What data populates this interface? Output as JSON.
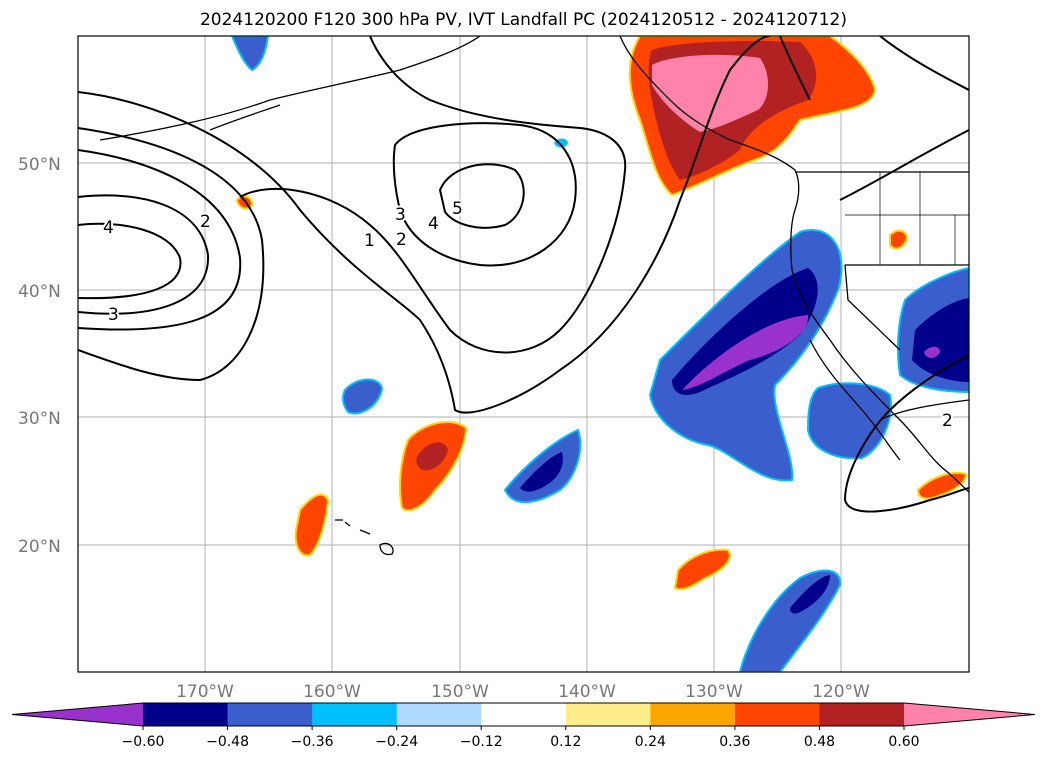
{
  "title": "2024120200 F120 300 hPa PV, IVT Landfall PC (2024120512 - 2024120712)",
  "map": {
    "lat_labels": [
      "50°N",
      "40°N",
      "30°N",
      "20°N"
    ],
    "lon_labels": [
      "170°W",
      "160°W",
      "150°W",
      "140°W",
      "130°W",
      "120°W"
    ],
    "pv_contour_labels": [
      "4",
      "2",
      "3",
      "3",
      "4",
      "5",
      "1",
      "2",
      "2"
    ]
  },
  "colorbar": {
    "extend": "both",
    "colors": [
      "#9932cc",
      "#00008b",
      "#3a5fcd",
      "#00bfff",
      "#add8ff",
      "#ffffff",
      "#ffec8b",
      "#ffa500",
      "#ff4500",
      "#b22222",
      "#ff82ab"
    ],
    "tick_labels": [
      "−0.60",
      "−0.48",
      "−0.36",
      "−0.24",
      "−0.12",
      "0.12",
      "0.24",
      "0.36",
      "0.48",
      "0.60"
    ]
  }
}
